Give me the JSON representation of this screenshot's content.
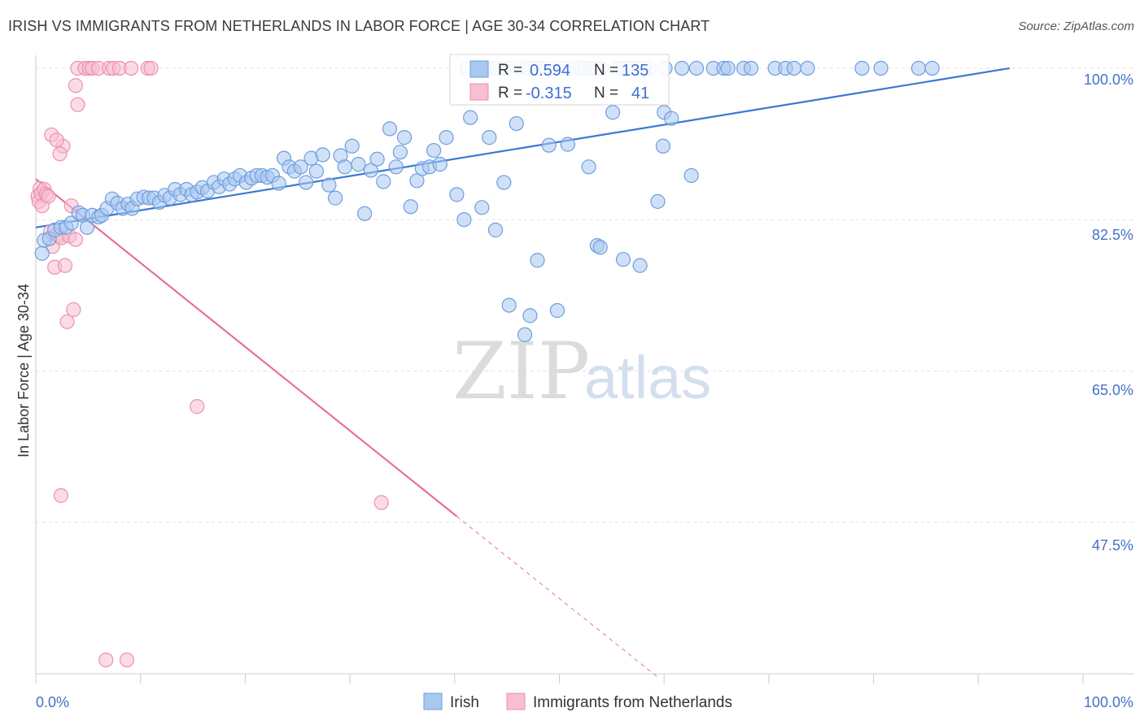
{
  "header": {
    "title": "IRISH VS IMMIGRANTS FROM NETHERLANDS IN LABOR FORCE | AGE 30-34 CORRELATION CHART",
    "source": "Source: ZipAtlas.com"
  },
  "watermark": {
    "zip": "ZIP",
    "atlas": "atlas"
  },
  "legend": {
    "r_label": "R =",
    "n_label": "N =",
    "irish": {
      "r": "0.594",
      "n": "135"
    },
    "netherlands": {
      "r": "-0.315",
      "n": "41"
    }
  },
  "colors": {
    "irish_fill": "#a9c8f0",
    "irish_stroke": "#6e9de0",
    "irish_line": "#3a78d4",
    "nl_fill": "#f7bfd0",
    "nl_stroke": "#ee8fae",
    "nl_line": "#e8709a",
    "tick_text": "#4472c4",
    "grid": "#e2e2e2"
  },
  "chart_data": {
    "type": "scatter",
    "title": "IRISH VS IMMIGRANTS FROM NETHERLANDS IN LABOR FORCE | AGE 30-34 CORRELATION CHART",
    "ylabel": "In Labor Force | Age 30-34",
    "xlabel": "",
    "xlim": [
      0,
      100
    ],
    "ylim": [
      30,
      101.5
    ],
    "x_tick_labels": [
      "0.0%",
      "100.0%"
    ],
    "y_ticks": [
      47.5,
      65.0,
      82.5,
      100.0
    ],
    "y_tick_labels": [
      "47.5%",
      "65.0%",
      "82.5%",
      "100.0%"
    ],
    "grid": true,
    "legend_position": "top-center",
    "series": [
      {
        "name": "Irish",
        "color": "#a9c8f0",
        "trend": {
          "x": [
            0,
            93
          ],
          "y": [
            81.6,
            100.0
          ]
        },
        "points": [
          [
            0.6,
            78.6
          ],
          [
            0.8,
            80.1
          ],
          [
            1.3,
            80.3
          ],
          [
            1.8,
            81.3
          ],
          [
            2.4,
            81.6
          ],
          [
            2.9,
            81.6
          ],
          [
            3.4,
            82.1
          ],
          [
            4.1,
            83.3
          ],
          [
            4.5,
            83.0
          ],
          [
            4.9,
            81.6
          ],
          [
            5.4,
            83.0
          ],
          [
            6.0,
            82.8
          ],
          [
            6.3,
            83.0
          ],
          [
            6.8,
            83.8
          ],
          [
            7.3,
            84.9
          ],
          [
            7.8,
            84.4
          ],
          [
            8.3,
            83.8
          ],
          [
            8.8,
            84.3
          ],
          [
            9.2,
            83.8
          ],
          [
            9.7,
            84.9
          ],
          [
            10.3,
            85.1
          ],
          [
            10.8,
            85.0
          ],
          [
            11.3,
            85.0
          ],
          [
            11.8,
            84.5
          ],
          [
            12.3,
            85.3
          ],
          [
            12.8,
            85.0
          ],
          [
            13.3,
            86.0
          ],
          [
            13.8,
            85.4
          ],
          [
            14.4,
            86.0
          ],
          [
            14.9,
            85.4
          ],
          [
            15.4,
            85.7
          ],
          [
            15.9,
            86.2
          ],
          [
            16.4,
            85.8
          ],
          [
            17.0,
            86.8
          ],
          [
            17.5,
            86.3
          ],
          [
            18.0,
            87.2
          ],
          [
            18.5,
            86.6
          ],
          [
            19.0,
            87.2
          ],
          [
            19.5,
            87.6
          ],
          [
            20.1,
            86.8
          ],
          [
            20.6,
            87.3
          ],
          [
            21.1,
            87.6
          ],
          [
            21.6,
            87.6
          ],
          [
            22.1,
            87.4
          ],
          [
            22.6,
            87.6
          ],
          [
            23.2,
            86.7
          ],
          [
            23.7,
            89.6
          ],
          [
            24.2,
            88.6
          ],
          [
            24.7,
            88.1
          ],
          [
            25.3,
            88.6
          ],
          [
            25.8,
            86.8
          ],
          [
            26.3,
            89.6
          ],
          [
            26.8,
            88.1
          ],
          [
            27.4,
            90.0
          ],
          [
            28.0,
            86.5
          ],
          [
            28.6,
            85.0
          ],
          [
            29.1,
            89.9
          ],
          [
            29.5,
            88.6
          ],
          [
            30.2,
            91.0
          ],
          [
            30.8,
            88.9
          ],
          [
            31.4,
            83.2
          ],
          [
            32.0,
            88.2
          ],
          [
            32.6,
            89.5
          ],
          [
            33.2,
            86.9
          ],
          [
            33.8,
            93.0
          ],
          [
            34.4,
            88.6
          ],
          [
            34.8,
            90.3
          ],
          [
            35.2,
            92.0
          ],
          [
            35.8,
            84.0
          ],
          [
            36.4,
            87.0
          ],
          [
            36.9,
            88.4
          ],
          [
            37.6,
            88.6
          ],
          [
            38.0,
            90.5
          ],
          [
            38.6,
            88.9
          ],
          [
            39.2,
            92.0
          ],
          [
            40.2,
            85.4
          ],
          [
            40.9,
            82.5
          ],
          [
            41.5,
            94.3
          ],
          [
            42.6,
            83.9
          ],
          [
            43.3,
            92.0
          ],
          [
            43.9,
            81.3
          ],
          [
            44.7,
            86.8
          ],
          [
            45.2,
            72.6
          ],
          [
            45.9,
            93.6
          ],
          [
            46.7,
            69.2
          ],
          [
            47.2,
            71.4
          ],
          [
            47.9,
            77.8
          ],
          [
            49.0,
            91.1
          ],
          [
            49.8,
            72.0
          ],
          [
            50.8,
            91.2
          ],
          [
            52.8,
            88.6
          ],
          [
            53.6,
            79.5
          ],
          [
            53.9,
            79.3
          ],
          [
            56.1,
            77.9
          ],
          [
            55.1,
            94.9
          ],
          [
            57.7,
            77.2
          ],
          [
            57.4,
            100.0
          ],
          [
            59.4,
            84.6
          ],
          [
            59.9,
            91.0
          ],
          [
            60.0,
            94.9
          ],
          [
            60.7,
            94.2
          ],
          [
            62.6,
            87.6
          ],
          [
            48.5,
            100.0
          ],
          [
            51.2,
            100.0
          ],
          [
            52.0,
            100.0
          ],
          [
            53.0,
            100.0
          ],
          [
            54.0,
            100.0
          ],
          [
            55.8,
            100.0
          ],
          [
            56.5,
            100.0
          ],
          [
            58.6,
            100.0
          ],
          [
            60.1,
            100.0
          ],
          [
            64.7,
            100.0
          ],
          [
            65.7,
            100.0
          ],
          [
            66.1,
            100.0
          ],
          [
            67.6,
            100.0
          ],
          [
            68.3,
            100.0
          ],
          [
            70.6,
            100.0
          ],
          [
            71.6,
            100.0
          ],
          [
            72.4,
            100.0
          ],
          [
            73.7,
            100.0
          ],
          [
            78.9,
            100.0
          ],
          [
            80.7,
            100.0
          ],
          [
            84.3,
            100.0
          ],
          [
            85.6,
            100.0
          ],
          [
            49.5,
            100.0
          ],
          [
            50.4,
            100.0
          ],
          [
            52.5,
            100.0
          ],
          [
            53.5,
            100.0
          ],
          [
            55.4,
            100.0
          ],
          [
            57.1,
            100.0
          ],
          [
            46.2,
            100.0
          ],
          [
            45.1,
            100.0
          ],
          [
            44.5,
            100.0
          ],
          [
            42.5,
            100.0
          ],
          [
            41.2,
            100.0
          ],
          [
            43.8,
            100.0
          ],
          [
            47.5,
            100.0
          ],
          [
            46.9,
            100.0
          ],
          [
            61.7,
            100.0
          ],
          [
            63.1,
            100.0
          ],
          [
            48.0,
            100.0
          ],
          [
            58.1,
            100.0
          ],
          [
            44.0,
            100.0
          ]
        ]
      },
      {
        "name": "Immigrants from Netherlands",
        "color": "#f7bfd0",
        "trend": {
          "x": [
            0,
            40.2
          ],
          "y": [
            87.2,
            48.2
          ],
          "dashed_to": [
            59.6,
            29.4
          ]
        },
        "points": [
          [
            0.2,
            85.2
          ],
          [
            0.3,
            84.6
          ],
          [
            0.4,
            86.1
          ],
          [
            0.5,
            85.5
          ],
          [
            0.6,
            84.1
          ],
          [
            0.8,
            86.0
          ],
          [
            1.0,
            85.4
          ],
          [
            1.2,
            85.2
          ],
          [
            1.4,
            81.1
          ],
          [
            1.6,
            79.4
          ],
          [
            1.8,
            77.0
          ],
          [
            2.0,
            80.8
          ],
          [
            2.2,
            80.6
          ],
          [
            2.4,
            80.4
          ],
          [
            2.6,
            91.0
          ],
          [
            2.8,
            77.2
          ],
          [
            3.0,
            70.7
          ],
          [
            3.2,
            80.6
          ],
          [
            3.4,
            84.1
          ],
          [
            3.6,
            72.1
          ],
          [
            3.8,
            80.2
          ],
          [
            1.5,
            92.3
          ],
          [
            2.0,
            91.7
          ],
          [
            2.3,
            90.1
          ],
          [
            3.8,
            98.0
          ],
          [
            4.0,
            100.0
          ],
          [
            4.7,
            100.0
          ],
          [
            5.1,
            100.0
          ],
          [
            5.4,
            100.0
          ],
          [
            6.0,
            100.0
          ],
          [
            7.0,
            100.0
          ],
          [
            7.4,
            100.0
          ],
          [
            8.0,
            100.0
          ],
          [
            9.1,
            100.0
          ],
          [
            10.7,
            100.0
          ],
          [
            11.0,
            100.0
          ],
          [
            4.0,
            95.8
          ],
          [
            2.4,
            50.6
          ],
          [
            6.7,
            31.6
          ],
          [
            8.7,
            31.6
          ],
          [
            15.4,
            60.9
          ],
          [
            33.0,
            49.8
          ]
        ]
      }
    ]
  }
}
